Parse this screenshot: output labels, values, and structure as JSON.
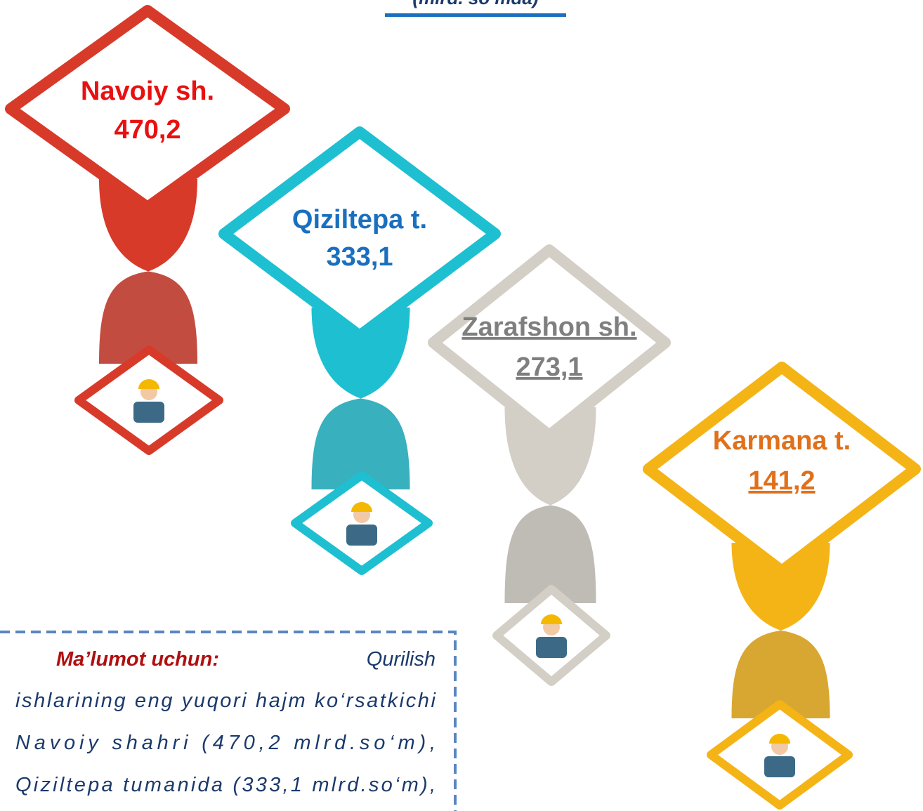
{
  "header": {
    "subtitle": "(mlrd. so‘mda)"
  },
  "items": [
    {
      "name": "Navoiy sh.",
      "value": "470,2",
      "color": "#d83a2a",
      "text_color": "#e81010"
    },
    {
      "name": "Qiziltepa t.",
      "value": "333,1",
      "color": "#1fbfd2",
      "text_color": "#1a6fbf"
    },
    {
      "name": "Zarafshon sh.",
      "value": "273,1",
      "color": "#d3cfc6",
      "text_color": "#7f7f7f"
    },
    {
      "name": "Karmana t.",
      "value": "141,2",
      "color": "#f4b416",
      "text_color": "#e0701a"
    }
  ],
  "info": {
    "label": "Ma’lumot uchun:",
    "lines": [
      "Qurilish",
      "ishlarining eng yuqori hajm ko‘rsatkichi",
      "Navoiy shahri (470,2 mlrd.so‘m),",
      "Qiziltepa tumanida (333,1 mlrd.so‘m),"
    ]
  }
}
